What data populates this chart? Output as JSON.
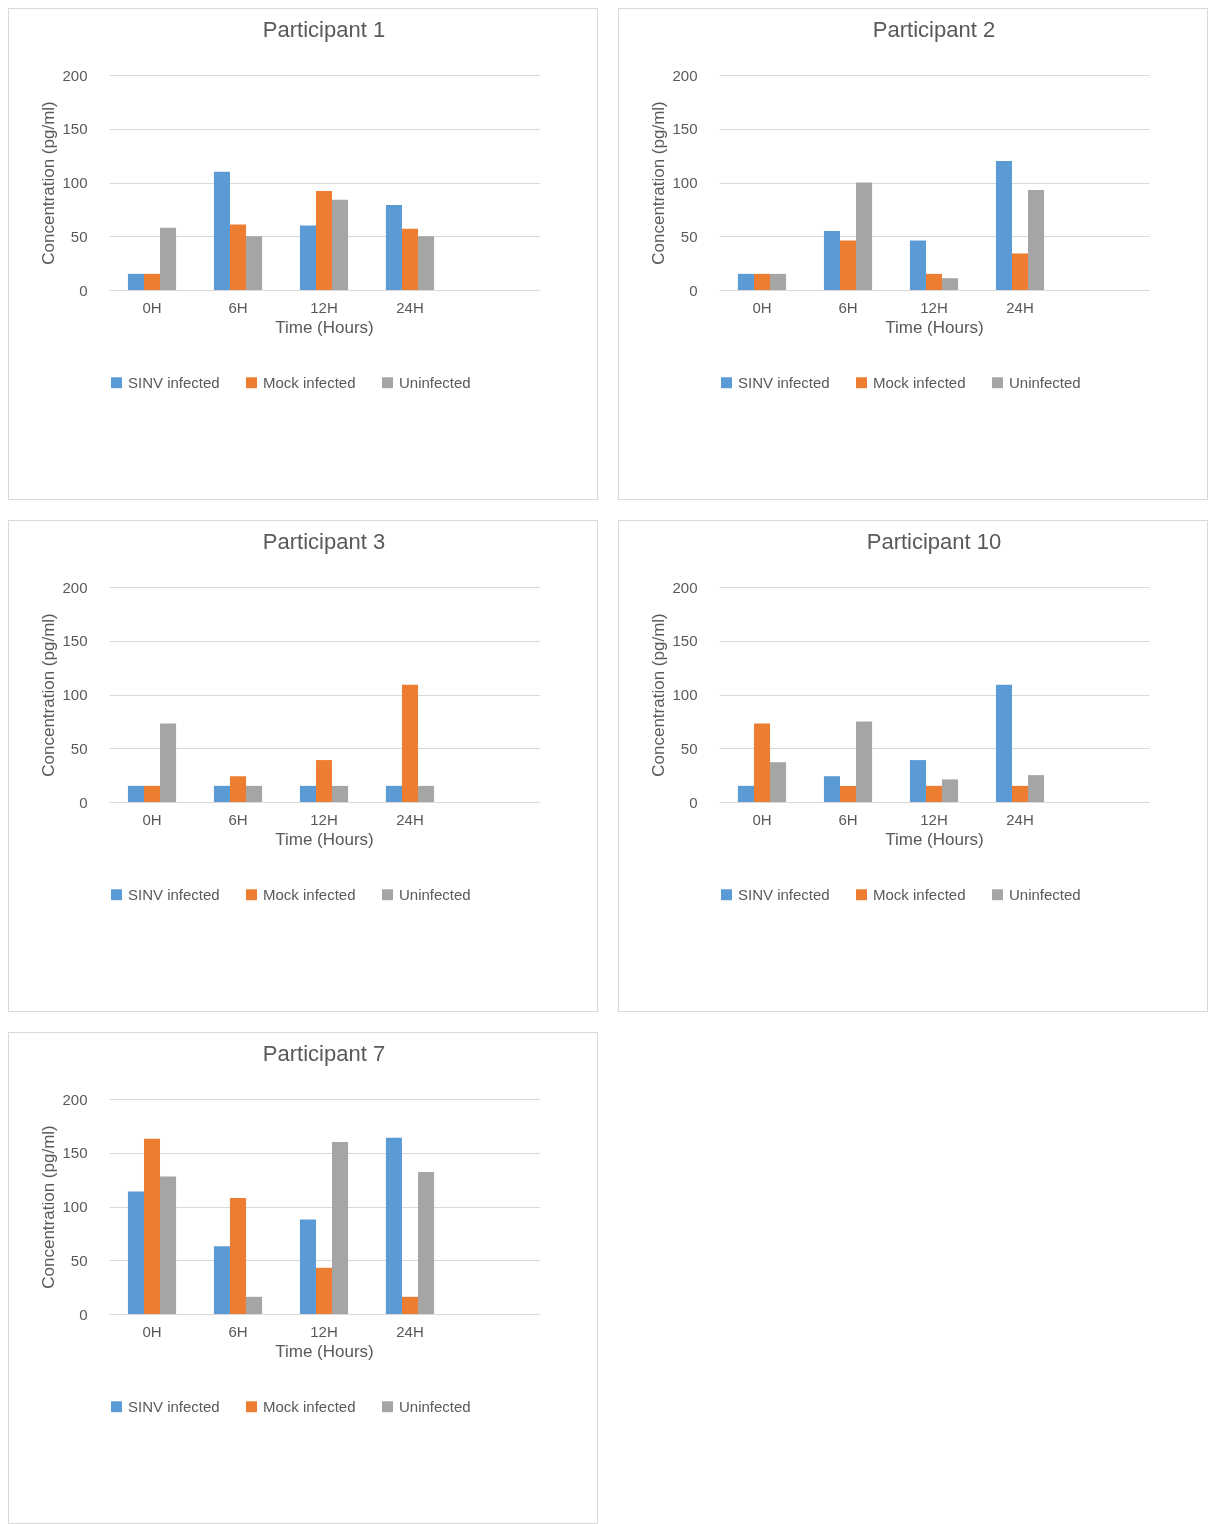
{
  "chart_data": [
    {
      "type": "bar",
      "title": "Participant 1",
      "xlabel": "Time (Hours)",
      "ylabel": "Concentration (pg/ml)",
      "categories": [
        "0H",
        "6H",
        "12H",
        "24H",
        null
      ],
      "ylim": [
        0,
        200
      ],
      "yticks": [
        0,
        50,
        100,
        150,
        200
      ],
      "grid": "y",
      "legend": "bottom",
      "series": [
        {
          "name": "SINV infected",
          "color": "#5b9bd5",
          "values": [
            15,
            110,
            60,
            79,
            null
          ]
        },
        {
          "name": "Mock infected",
          "color": "#ed7d31",
          "values": [
            15,
            61,
            92,
            57,
            null
          ]
        },
        {
          "name": "Uninfected",
          "color": "#a5a5a5",
          "values": [
            58,
            50,
            84,
            50,
            null
          ]
        }
      ]
    },
    {
      "type": "bar",
      "title": "Participant 2",
      "xlabel": "Time (Hours)",
      "ylabel": "Concentration (pg/ml)",
      "categories": [
        "0H",
        "6H",
        "12H",
        "24H",
        null
      ],
      "ylim": [
        0,
        200
      ],
      "yticks": [
        0,
        50,
        100,
        150,
        200
      ],
      "grid": "y",
      "legend": "bottom",
      "series": [
        {
          "name": "SINV infected",
          "color": "#5b9bd5",
          "values": [
            15,
            55,
            46,
            120,
            null
          ]
        },
        {
          "name": "Mock infected",
          "color": "#ed7d31",
          "values": [
            15,
            46,
            15,
            34,
            null
          ]
        },
        {
          "name": "Uninfected",
          "color": "#a5a5a5",
          "values": [
            15,
            100,
            11,
            93,
            null
          ]
        }
      ]
    },
    {
      "type": "bar",
      "title": "Participant 3",
      "xlabel": "Time (Hours)",
      "ylabel": "Concentration (pg/ml)",
      "categories": [
        "0H",
        "6H",
        "12H",
        "24H",
        null
      ],
      "ylim": [
        0,
        200
      ],
      "yticks": [
        0,
        50,
        100,
        150,
        200
      ],
      "grid": "y",
      "legend": "bottom",
      "series": [
        {
          "name": "SINV infected",
          "color": "#5b9bd5",
          "values": [
            15,
            15,
            15,
            15,
            null
          ]
        },
        {
          "name": "Mock infected",
          "color": "#ed7d31",
          "values": [
            15,
            24,
            39,
            109,
            null
          ]
        },
        {
          "name": "Uninfected",
          "color": "#a5a5a5",
          "values": [
            73,
            15,
            15,
            15,
            null
          ]
        }
      ]
    },
    {
      "type": "bar",
      "title": "Participant 10",
      "xlabel": "Time (Hours)",
      "ylabel": "Concentration (pg/ml)",
      "categories": [
        "0H",
        "6H",
        "12H",
        "24H",
        null
      ],
      "ylim": [
        0,
        200
      ],
      "yticks": [
        0,
        50,
        100,
        150,
        200
      ],
      "grid": "y",
      "legend": "bottom",
      "series": [
        {
          "name": "SINV infected",
          "color": "#5b9bd5",
          "values": [
            15,
            24,
            39,
            109,
            null
          ]
        },
        {
          "name": "Mock infected",
          "color": "#ed7d31",
          "values": [
            73,
            15,
            15,
            15,
            null
          ]
        },
        {
          "name": "Uninfected",
          "color": "#a5a5a5",
          "values": [
            37,
            75,
            21,
            25,
            null
          ]
        }
      ]
    },
    {
      "type": "bar",
      "title": "Participant 7",
      "xlabel": "Time (Hours)",
      "ylabel": "Concentration (pg/ml)",
      "categories": [
        "0H",
        "6H",
        "12H",
        "24H",
        null
      ],
      "ylim": [
        0,
        200
      ],
      "yticks": [
        0,
        50,
        100,
        150,
        200
      ],
      "grid": "y",
      "legend": "bottom",
      "series": [
        {
          "name": "SINV infected",
          "color": "#5b9bd5",
          "values": [
            114,
            63,
            88,
            164,
            null
          ]
        },
        {
          "name": "Mock infected",
          "color": "#ed7d31",
          "values": [
            163,
            108,
            43,
            16,
            null
          ]
        },
        {
          "name": "Uninfected",
          "color": "#a5a5a5",
          "values": [
            128,
            16,
            160,
            132,
            null
          ]
        }
      ]
    }
  ]
}
